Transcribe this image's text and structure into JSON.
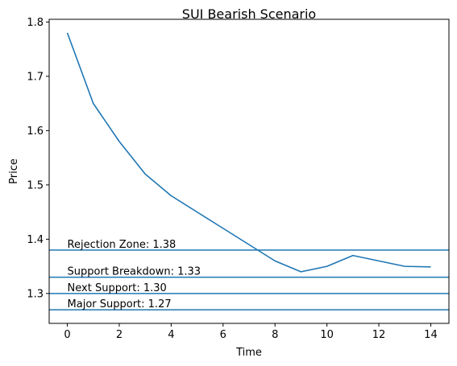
{
  "chart_data": {
    "type": "line",
    "title": "SUI Bearish Scenario",
    "xlabel": "Time",
    "ylabel": "Price",
    "xlim": [
      -0.7,
      14.7
    ],
    "ylim": [
      1.245,
      1.805
    ],
    "x_ticks": [
      0,
      2,
      4,
      6,
      8,
      10,
      12,
      14
    ],
    "y_ticks": [
      1.3,
      1.4,
      1.5,
      1.6,
      1.7,
      1.8
    ],
    "x_tick_labels": [
      "0",
      "2",
      "4",
      "6",
      "8",
      "10",
      "12",
      "14"
    ],
    "y_tick_labels": [
      "1.3",
      "1.4",
      "1.5",
      "1.6",
      "1.7",
      "1.8"
    ],
    "grid": false,
    "line_color": "#1f77b4",
    "series": [
      {
        "x": [
          0,
          1,
          2,
          3,
          4,
          5,
          6,
          7,
          8,
          9,
          10,
          11,
          12,
          13,
          14
        ],
        "values": [
          1.78,
          1.65,
          1.58,
          1.52,
          1.48,
          1.45,
          1.42,
          1.39,
          1.36,
          1.34,
          1.35,
          1.37,
          1.36,
          1.35,
          1.349
        ]
      }
    ],
    "hlines": [
      {
        "y": 1.38,
        "label": "Rejection Zone: 1.38"
      },
      {
        "y": 1.33,
        "label": "Support Breakdown: 1.33"
      },
      {
        "y": 1.3,
        "label": "Next Support: 1.30"
      },
      {
        "y": 1.27,
        "label": "Major Support: 1.27"
      }
    ]
  }
}
